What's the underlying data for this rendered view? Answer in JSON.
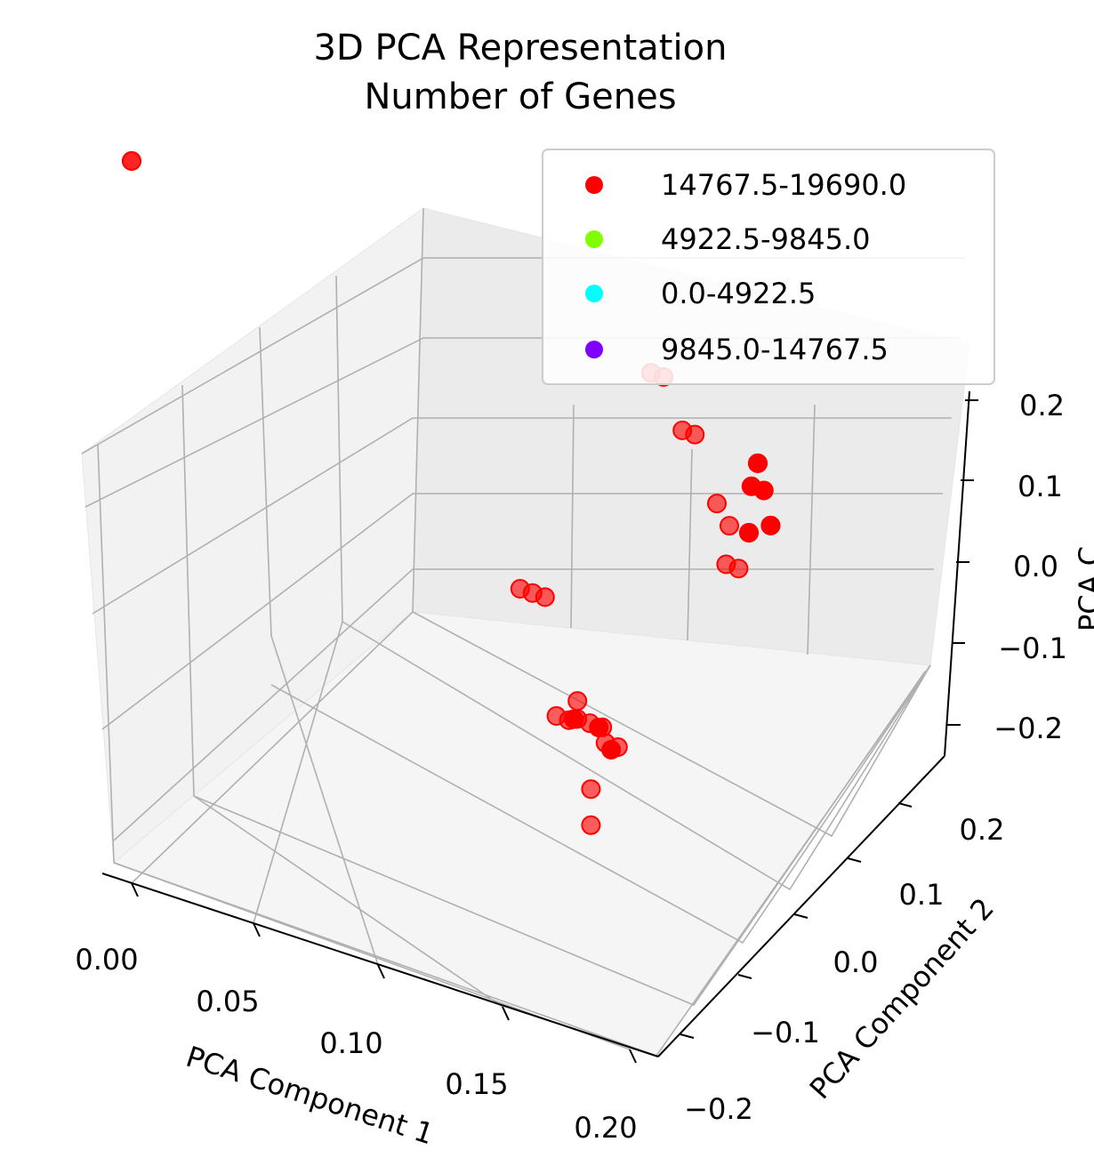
{
  "chart_data": {
    "type": "scatter",
    "title": [
      "3D PCA Representation",
      "Number of Genes"
    ],
    "xlabel": "PCA Component 1",
    "ylabel": "PCA Component 2",
    "zlabel": "PCA C",
    "xlim": [
      -0.01,
      0.21
    ],
    "ylim": [
      -0.24,
      0.26
    ],
    "zlim": [
      -0.23,
      0.22
    ],
    "x_ticks": [
      "0.00",
      "0.05",
      "0.10",
      "0.15",
      "0.20"
    ],
    "y_ticks": [
      "−0.2",
      "−0.1",
      "0.0",
      "0.1",
      "0.2"
    ],
    "z_ticks": [
      "−0.2",
      "−0.1",
      "0.0",
      "0.1",
      "0.2"
    ],
    "grid": true,
    "legend_position": "top-right",
    "legend": [
      {
        "label": "14767.5-19690.0",
        "color": "#ff0000"
      },
      {
        "label": "4922.5-9845.0",
        "color": "#80ff00"
      },
      {
        "label": "0.0-4922.5",
        "color": "#00ffff"
      },
      {
        "label": "9845.0-14767.5",
        "color": "#8000ff"
      }
    ],
    "series": [
      {
        "name": "14767.5-19690.0",
        "color": "#ff0000",
        "points": [
          {
            "x": 0.0,
            "y": -0.2,
            "z": 0.18
          },
          {
            "x": 0.0,
            "y": -0.2,
            "z": 0.18
          },
          {
            "x": 0.17,
            "y": 0.1,
            "z": 0.1
          },
          {
            "x": 0.175,
            "y": 0.1,
            "z": 0.1
          },
          {
            "x": 0.18,
            "y": 0.12,
            "z": 0.07
          },
          {
            "x": 0.185,
            "y": 0.12,
            "z": 0.07
          },
          {
            "x": 0.19,
            "y": 0.15,
            "z": 0.03
          },
          {
            "x": 0.195,
            "y": 0.14,
            "z": 0.0
          },
          {
            "x": 0.2,
            "y": 0.14,
            "z": 0.0
          },
          {
            "x": 0.195,
            "y": 0.15,
            "z": 0.02
          },
          {
            "x": 0.2,
            "y": 0.18,
            "z": 0.04
          },
          {
            "x": 0.205,
            "y": 0.18,
            "z": 0.04
          },
          {
            "x": 0.2,
            "y": 0.2,
            "z": 0.05
          },
          {
            "x": 0.2,
            "y": 0.2,
            "z": 0.05
          },
          {
            "x": 0.2,
            "y": 0.24,
            "z": 0.01
          },
          {
            "x": 0.2,
            "y": 0.24,
            "z": 0.01
          },
          {
            "x": 0.19,
            "y": 0.25,
            "z": 0.0
          },
          {
            "x": 0.19,
            "y": 0.25,
            "z": 0.0
          },
          {
            "x": 0.12,
            "y": 0.08,
            "z": -0.04
          },
          {
            "x": 0.125,
            "y": 0.08,
            "z": -0.04
          },
          {
            "x": 0.13,
            "y": 0.08,
            "z": -0.04
          },
          {
            "x": 0.13,
            "y": 0.17,
            "z": -0.12
          },
          {
            "x": 0.14,
            "y": 0.17,
            "z": -0.12
          },
          {
            "x": 0.145,
            "y": 0.17,
            "z": -0.13
          },
          {
            "x": 0.15,
            "y": -0.04,
            "z": -0.08
          },
          {
            "x": 0.155,
            "y": -0.04,
            "z": -0.08
          },
          {
            "x": 0.16,
            "y": -0.01,
            "z": -0.12
          },
          {
            "x": 0.16,
            "y": -0.01,
            "z": -0.14
          },
          {
            "x": 0.17,
            "y": -0.13,
            "z": -0.05
          },
          {
            "x": 0.17,
            "y": -0.13,
            "z": -0.06
          },
          {
            "x": 0.175,
            "y": -0.13,
            "z": -0.06
          },
          {
            "x": 0.18,
            "y": -0.13,
            "z": -0.06
          },
          {
            "x": 0.18,
            "y": -0.12,
            "z": -0.07
          },
          {
            "x": 0.185,
            "y": -0.12,
            "z": -0.07
          }
        ]
      },
      {
        "name": "4922.5-9845.0",
        "color": "#80ff00",
        "points": []
      },
      {
        "name": "0.0-4922.5",
        "color": "#00ffff",
        "points": []
      },
      {
        "name": "9845.0-14767.5",
        "color": "#8000ff",
        "points": []
      }
    ]
  }
}
